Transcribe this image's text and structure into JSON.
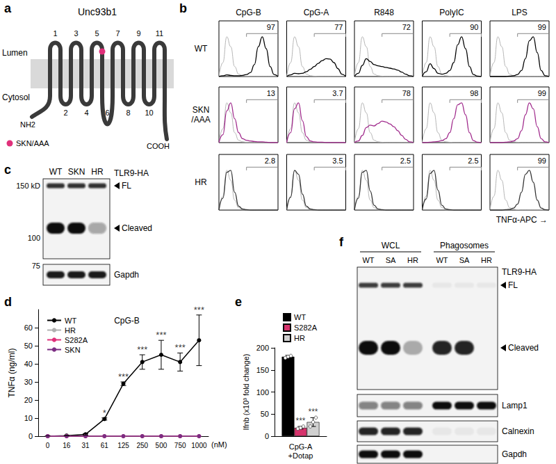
{
  "figure": {
    "a": {
      "panel_label": "a",
      "title": "Unc93b1",
      "lumen": "Lumen",
      "cytosol": "Cytosol",
      "n_term": "NH2",
      "c_term": "COOH",
      "loops": [
        1,
        2,
        3,
        4,
        5,
        6,
        7,
        8,
        9,
        10,
        11
      ],
      "mutation": {
        "label": "SKN/AAA",
        "color": "#e0307a",
        "loop": 5
      }
    },
    "c": {
      "panel_label": "c",
      "lanes": [
        "WT",
        "SKN",
        "HR"
      ],
      "antibody": "TLR9-HA",
      "markers": [
        "150 kD",
        "100",
        "75"
      ],
      "bands": [
        {
          "label": "FL",
          "intensity": [
            0.85,
            0.85,
            0.85
          ]
        },
        {
          "label": "Cleaved",
          "intensity": [
            1,
            1,
            0.35
          ]
        }
      ],
      "blots": [
        {
          "label": "Gapdh",
          "intensity": [
            0.95,
            0.95,
            0.95
          ]
        }
      ]
    },
    "f": {
      "panel_label": "f",
      "groups": [
        {
          "label": "WCL",
          "lanes": [
            "WT",
            "SA",
            "HR"
          ]
        },
        {
          "label": "Phagosomes",
          "lanes": [
            "WT",
            "SA",
            "HR"
          ]
        }
      ],
      "antibody": "TLR9-HA",
      "bands": [
        {
          "label": "FL",
          "intensity": [
            0.8,
            0.8,
            0.8,
            0.05,
            0.05,
            0.05
          ]
        },
        {
          "label": "Cleaved",
          "intensity": [
            1,
            1,
            0.3,
            0.9,
            0.9,
            0
          ]
        }
      ],
      "blots": [
        {
          "label": "Lamp1",
          "intensity": [
            0.5,
            0.5,
            0.5,
            1,
            1,
            1
          ]
        },
        {
          "label": "Calnexin",
          "intensity": [
            0.9,
            0.9,
            0.9,
            0.05,
            0.05,
            0.05
          ]
        },
        {
          "label": "Gapdh",
          "intensity": [
            1,
            1,
            1,
            0,
            0,
            0
          ]
        }
      ]
    }
  },
  "chart_data": [
    {
      "type": "line",
      "panel_label": "b",
      "columns": [
        "CpG-B",
        "CpG-A",
        "R848",
        "PolyIC",
        "LPS"
      ],
      "xlabel": "TNFα-APC →",
      "tick_labels": false,
      "x": [
        0,
        1,
        2,
        3,
        4,
        5,
        6,
        7,
        8,
        9,
        10,
        11,
        12,
        13,
        14,
        15
      ],
      "xlim": [
        0,
        15
      ],
      "ylim": [
        0,
        140
      ],
      "gate": {
        "x": [
          7,
          15
        ],
        "y": 108
      },
      "control": {
        "color": "#b5b5b5",
        "values": [
          0,
          35,
          100,
          75,
          25,
          6,
          2,
          1,
          0,
          0,
          0,
          0,
          0,
          0,
          0,
          0
        ]
      },
      "rows": [
        {
          "name": "WT",
          "color": "#000000",
          "percents": [
            97,
            77,
            72,
            90,
            99
          ],
          "curves": [
            [
              0,
              2,
              4,
              3,
              2,
              2,
              3,
              5,
              10,
              30,
              75,
              100,
              70,
              25,
              5,
              0
            ],
            [
              0,
              4,
              8,
              7,
              8,
              12,
              18,
              25,
              33,
              40,
              45,
              44,
              35,
              20,
              6,
              0
            ],
            [
              0,
              8,
              28,
              45,
              38,
              30,
              27,
              25,
              23,
              21,
              19,
              16,
              11,
              6,
              2,
              0
            ],
            [
              0,
              12,
              32,
              20,
              8,
              6,
              8,
              15,
              35,
              80,
              100,
              70,
              25,
              5,
              1,
              0
            ],
            [
              0,
              0,
              0,
              0,
              0,
              1,
              2,
              5,
              15,
              45,
              90,
              100,
              60,
              15,
              2,
              0
            ]
          ]
        },
        {
          "name": "SKN\n/AAA",
          "color": "#a02a8c",
          "percents": [
            13,
            3.7,
            78,
            98,
            99
          ],
          "curves": [
            [
              0,
              20,
              80,
              100,
              60,
              25,
              10,
              6,
              4,
              3,
              2,
              2,
              1,
              0,
              0,
              0
            ],
            [
              0,
              25,
              85,
              100,
              55,
              15,
              4,
              2,
              1,
              1,
              0,
              0,
              0,
              0,
              0,
              0
            ],
            [
              0,
              4,
              18,
              38,
              44,
              42,
              48,
              54,
              52,
              47,
              40,
              30,
              18,
              8,
              2,
              0
            ],
            [
              0,
              0,
              1,
              2,
              3,
              5,
              10,
              25,
              60,
              95,
              100,
              70,
              25,
              5,
              1,
              0
            ],
            [
              0,
              0,
              0,
              0,
              1,
              2,
              4,
              10,
              30,
              70,
              100,
              85,
              40,
              10,
              2,
              0
            ]
          ]
        },
        {
          "name": "HR",
          "color": "#333333",
          "percents": [
            2.8,
            3.5,
            2.5,
            2.5,
            99
          ],
          "curves": [
            [
              0,
              30,
              95,
              100,
              45,
              10,
              3,
              1,
              0,
              0,
              0,
              0,
              0,
              0,
              0,
              0
            ],
            [
              0,
              32,
              100,
              90,
              40,
              10,
              3,
              1,
              0,
              0,
              0,
              0,
              0,
              0,
              0,
              0
            ],
            [
              0,
              30,
              95,
              100,
              48,
              12,
              3,
              1,
              0,
              0,
              0,
              0,
              0,
              0,
              0,
              0
            ],
            [
              0,
              28,
              92,
              100,
              50,
              12,
              3,
              1,
              0,
              0,
              0,
              0,
              0,
              0,
              0,
              0
            ],
            [
              0,
              0,
              0,
              0,
              1,
              2,
              5,
              15,
              45,
              90,
              100,
              70,
              25,
              5,
              1,
              0
            ]
          ]
        }
      ]
    },
    {
      "type": "line",
      "panel_label": "d",
      "title": "CpG-B",
      "ylabel": "TNFα (ng/ml)",
      "xlabel": "(nM)",
      "categories": [
        "0",
        "16",
        "31",
        "61",
        "125",
        "250",
        "500",
        "750",
        "1000"
      ],
      "series": [
        {
          "name": "WT",
          "color": "#000000",
          "marker": "circle",
          "values": [
            0,
            0.3,
            1,
            9.5,
            29,
            41,
            45,
            41,
            53
          ],
          "errors": [
            0,
            0,
            0.4,
            0.6,
            1,
            4,
            8,
            5,
            14
          ]
        },
        {
          "name": "HR",
          "color": "#b0b0b0",
          "marker": "circle",
          "values": [
            0,
            0,
            0,
            0,
            0,
            0,
            0,
            0,
            0
          ]
        },
        {
          "name": "S282A",
          "color": "#e0307a",
          "marker": "circle",
          "values": [
            0,
            0,
            0,
            0,
            0,
            0,
            0,
            0,
            0
          ]
        },
        {
          "name": "SKN",
          "color": "#7b2d83",
          "marker": "circle",
          "values": [
            0,
            0,
            0,
            0,
            0,
            0,
            0,
            0,
            0
          ]
        }
      ],
      "ylim": [
        0,
        70
      ],
      "yticks": [
        0,
        10,
        20,
        30,
        40,
        50,
        60
      ],
      "grid": false,
      "legend": "top-left",
      "annotations": [
        {
          "x": "61",
          "text": "*"
        },
        {
          "x": "125",
          "text": "***"
        },
        {
          "x": "250",
          "text": "***"
        },
        {
          "x": "500",
          "text": "***"
        },
        {
          "x": "750",
          "text": "***"
        },
        {
          "x": "1000",
          "text": "***"
        }
      ]
    },
    {
      "type": "bar",
      "panel_label": "e",
      "ylabel": "Ifnb (x10³ fold change)",
      "categories": [
        "CpG-A\n+Dotap"
      ],
      "series": [
        {
          "name": "WT",
          "color": "#000000",
          "values": [
            180
          ],
          "errors": [
            3
          ],
          "points": [
            [
              177,
              180,
              182
            ]
          ]
        },
        {
          "name": "S282A",
          "color": "#d6336c",
          "values": [
            19
          ],
          "errors": [
            3
          ],
          "points": [
            [
              17,
              19,
              22
            ]
          ]
        },
        {
          "name": "HR",
          "color": "#d0d0d0",
          "values": [
            32
          ],
          "errors": [
            10
          ],
          "points": [
            [
              22,
              32,
              42
            ]
          ]
        }
      ],
      "ylim": [
        0,
        200
      ],
      "yticks": [
        0,
        50,
        100,
        150,
        200
      ],
      "grid": false,
      "legend": "top-left",
      "annotations": [
        {
          "series": "S282A",
          "text": "***"
        },
        {
          "series": "HR",
          "text": "***"
        }
      ]
    }
  ]
}
